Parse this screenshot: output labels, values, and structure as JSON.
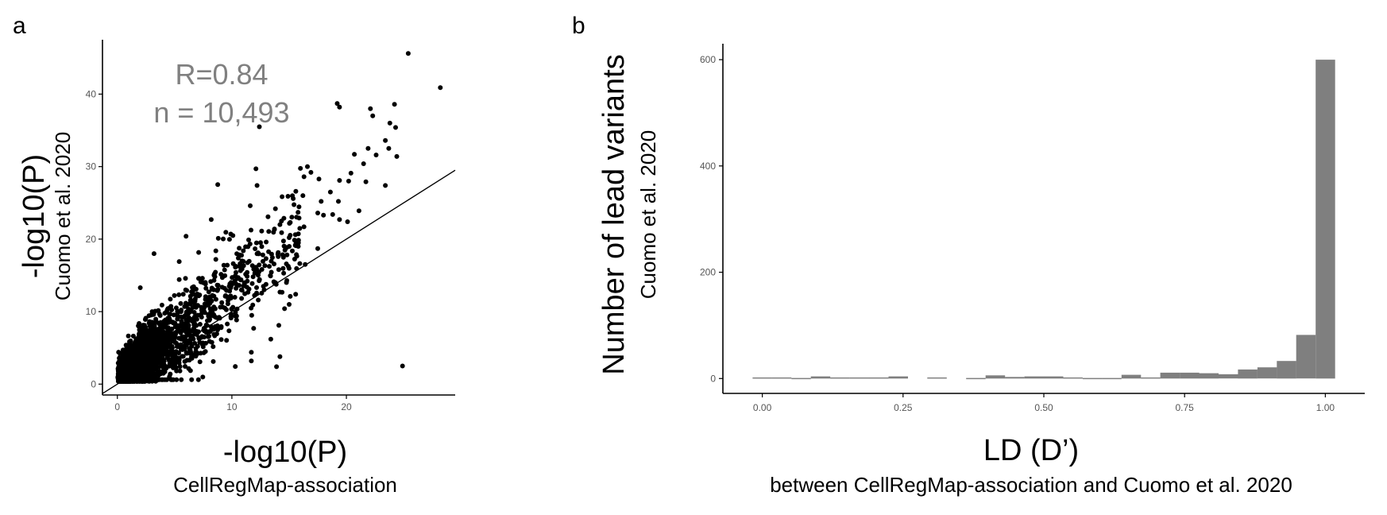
{
  "figure": {
    "panel_a_letter": "a",
    "panel_b_letter": "b"
  },
  "chart_data": [
    {
      "type": "scatter",
      "panel": "a",
      "xlabel": "-log10(P)",
      "xlabel_sub": "CellRegMap-association",
      "ylabel": "-log10(P)",
      "ylabel_sub": "Cuomo et al. 2020",
      "annotations": [
        "R=0.84",
        "n = 10,493"
      ],
      "xlim": [
        -1.3,
        29.5
      ],
      "ylim": [
        -1.5,
        47.5
      ],
      "xticks": [
        0,
        10,
        20
      ],
      "yticks": [
        0,
        10,
        20,
        30,
        40
      ],
      "point_color": "#000000",
      "reference_line": {
        "slope": 1,
        "intercept": 0,
        "color": "#000000"
      },
      "n_points": 10493,
      "highlight_points": [
        [
          25.4,
          45.6
        ],
        [
          28.2,
          40.9
        ],
        [
          19.2,
          38.7
        ],
        [
          19.4,
          38.2
        ],
        [
          22.1,
          38.0
        ],
        [
          24.2,
          38.6
        ],
        [
          22.3,
          37.0
        ],
        [
          23.8,
          36.0
        ],
        [
          24.3,
          35.4
        ],
        [
          12.4,
          35.5
        ],
        [
          23.4,
          33.6
        ],
        [
          23.7,
          32.5
        ],
        [
          21.9,
          32.5
        ],
        [
          22.6,
          31.6
        ],
        [
          24.4,
          31.4
        ],
        [
          20.7,
          31.7
        ],
        [
          21.5,
          30.4
        ],
        [
          16.6,
          30.0
        ],
        [
          12.1,
          29.7
        ],
        [
          20.4,
          29.1
        ],
        [
          16.9,
          29.2
        ],
        [
          17.6,
          28.3
        ],
        [
          19.4,
          28.1
        ],
        [
          21.7,
          27.9
        ],
        [
          20.2,
          28.0
        ],
        [
          18.6,
          26.5
        ],
        [
          16.3,
          28.6
        ],
        [
          23.4,
          27.4
        ],
        [
          19.3,
          25.2
        ],
        [
          12.2,
          27.4
        ],
        [
          16.2,
          26.0
        ],
        [
          17.8,
          25.2
        ],
        [
          14.9,
          25.9
        ],
        [
          11.6,
          24.6
        ],
        [
          13.8,
          24.2
        ],
        [
          18.8,
          23.4
        ],
        [
          17.5,
          23.6
        ],
        [
          21.1,
          23.9
        ],
        [
          18.0,
          23.3
        ],
        [
          15.1,
          22.3
        ],
        [
          20.1,
          22.4
        ],
        [
          19.4,
          22.7
        ],
        [
          14.2,
          22.0
        ],
        [
          8.2,
          22.7
        ],
        [
          16.3,
          21.7
        ],
        [
          15.0,
          20.2
        ],
        [
          6.0,
          20.4
        ],
        [
          9.9,
          20.7
        ],
        [
          3.2,
          18.0
        ],
        [
          12.6,
          21.1
        ],
        [
          13.0,
          19.6
        ],
        [
          15.8,
          19.0
        ],
        [
          11.0,
          18.4
        ],
        [
          17.5,
          18.7
        ],
        [
          14.5,
          17.5
        ],
        [
          8.6,
          17.2
        ],
        [
          5.4,
          16.9
        ],
        [
          9.3,
          16.4
        ],
        [
          16.4,
          16.5
        ],
        [
          12.0,
          15.3
        ],
        [
          10.8,
          14.4
        ],
        [
          13.8,
          14.0
        ],
        [
          11.5,
          13.1
        ],
        [
          7.7,
          13.8
        ],
        [
          14.2,
          12.7
        ],
        [
          15.1,
          12.1
        ],
        [
          12.3,
          11.6
        ],
        [
          2.0,
          13.3
        ],
        [
          15.0,
          11.0
        ],
        [
          14.6,
          10.4
        ],
        [
          10.3,
          9.4
        ],
        [
          14.1,
          8.1
        ],
        [
          11.9,
          7.7
        ],
        [
          9.6,
          8.3
        ],
        [
          13.4,
          6.2
        ],
        [
          14.2,
          3.8
        ],
        [
          11.7,
          4.4
        ],
        [
          11.7,
          3.2
        ],
        [
          13.9,
          2.4
        ],
        [
          24.9,
          2.5
        ]
      ]
    },
    {
      "type": "bar",
      "panel": "b",
      "xlabel": "LD (D’)",
      "xlabel_sub": "between CellRegMap-association and Cuomo et al. 2020",
      "ylabel": "Number of lead variants",
      "ylabel_sub": "Cuomo et al. 2020",
      "xlim": [
        -0.07,
        1.07
      ],
      "ylim": [
        -28,
        630
      ],
      "xticks": [
        0.0,
        0.25,
        0.5,
        0.75,
        1.0
      ],
      "xtick_labels": [
        "0.00",
        "0.25",
        "0.50",
        "0.75",
        "1.00"
      ],
      "yticks": [
        0,
        200,
        400,
        600
      ],
      "bar_color": "#7f7f7f",
      "bin_width": 0.0345,
      "bins": [
        0.0,
        0.0345,
        0.069,
        0.1034,
        0.1379,
        0.1724,
        0.2069,
        0.2414,
        0.2759,
        0.3103,
        0.3448,
        0.3793,
        0.4138,
        0.4483,
        0.4828,
        0.5172,
        0.5517,
        0.5862,
        0.6207,
        0.6552,
        0.6897,
        0.7241,
        0.7586,
        0.7931,
        0.8276,
        0.8621,
        0.8966,
        0.931,
        0.9655,
        1.0
      ],
      "values": [
        2,
        2,
        1,
        4,
        2,
        2,
        2,
        4,
        0,
        2,
        0,
        1,
        6,
        3,
        4,
        4,
        2,
        1,
        1,
        7,
        2,
        11,
        11,
        10,
        8,
        17,
        21,
        33,
        82,
        600
      ]
    }
  ]
}
